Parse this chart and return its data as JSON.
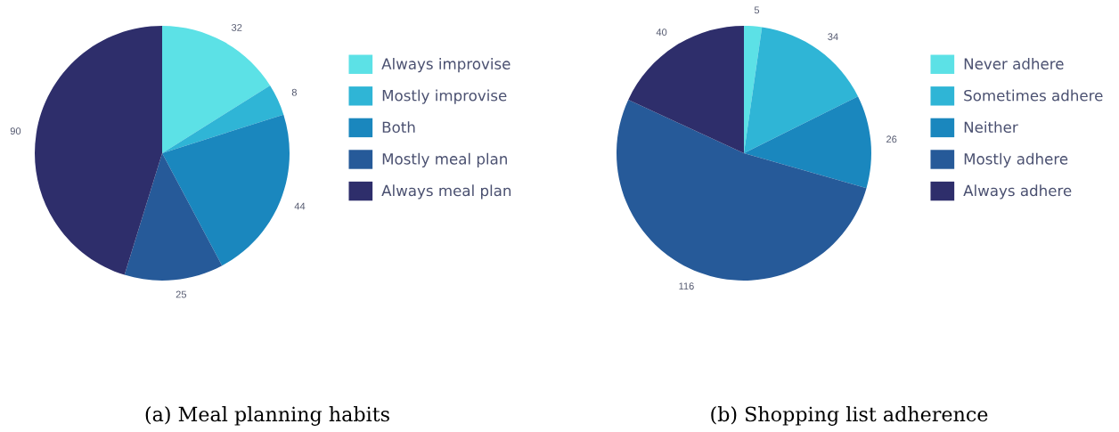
{
  "chart_data": [
    {
      "type": "pie",
      "title": "(a) Meal planning habits",
      "categories": [
        "Always improvise",
        "Mostly improvise",
        "Both",
        "Mostly meal plan",
        "Always meal plan"
      ],
      "values": [
        32,
        8,
        44,
        25,
        90
      ],
      "colors": [
        "#5ce1e6",
        "#2fb5d6",
        "#1a87be",
        "#265a99",
        "#2e2e6b"
      ],
      "data_labels": true,
      "legend": "right"
    },
    {
      "type": "pie",
      "title": "(b) Shopping list adherence",
      "categories": [
        "Never adhere",
        "Sometimes adhere",
        "Neither",
        "Mostly adhere",
        "Always adhere"
      ],
      "values": [
        5,
        34,
        26,
        116,
        40
      ],
      "colors": [
        "#5ce1e6",
        "#2fb5d6",
        "#1a87be",
        "#265a99",
        "#2e2e6b"
      ],
      "data_labels": true,
      "legend": "right"
    }
  ]
}
